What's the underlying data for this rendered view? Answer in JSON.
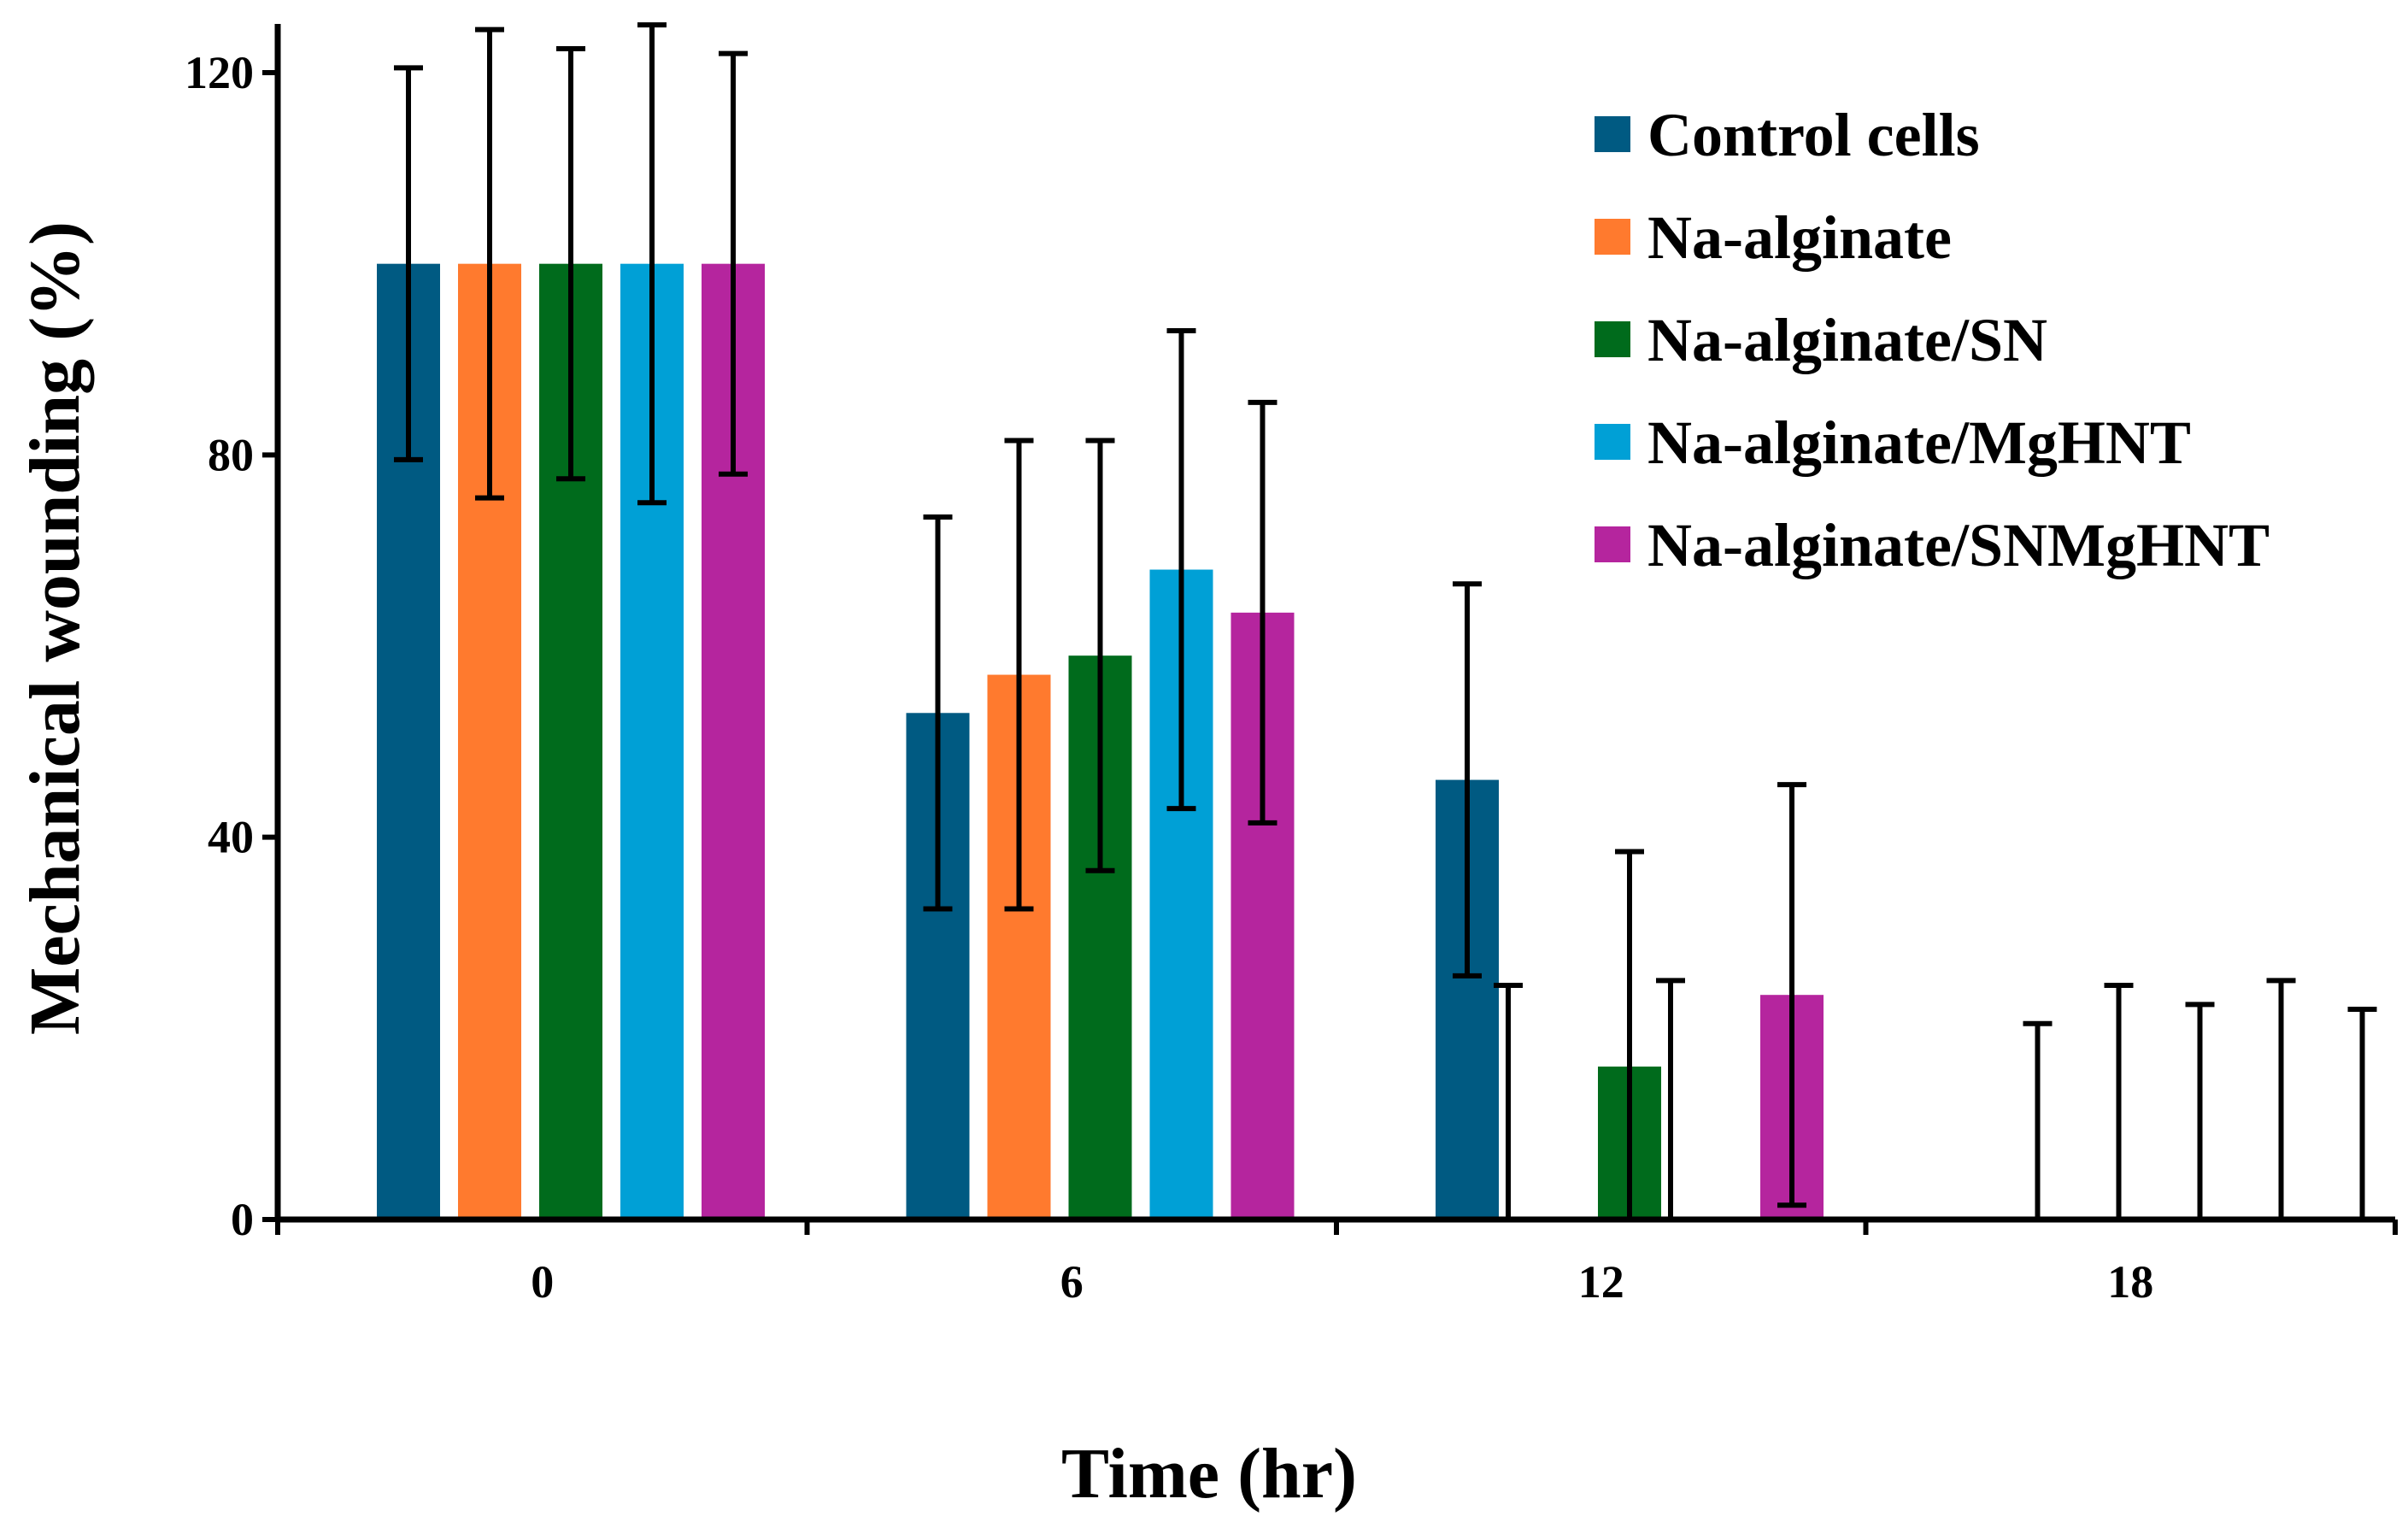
{
  "chart_data": {
    "type": "bar",
    "title": "",
    "xlabel": "Time (hr)",
    "ylabel": "Mechanical wounding (%)",
    "categories": [
      "0",
      "6",
      "12",
      "18"
    ],
    "ylim": [
      0,
      120
    ],
    "yticks": [
      "0",
      "40",
      "80",
      "120"
    ],
    "legend_position": "top-right",
    "grid": false,
    "series": [
      {
        "name": "Control cells",
        "color": "#005a82",
        "values": [
          100,
          53,
          46,
          0
        ],
        "errors": [
          20.5,
          20.5,
          20.5,
          0
        ]
      },
      {
        "name": "Na-alginate",
        "color": "#ff7a2e",
        "values": [
          100,
          57,
          0,
          0
        ],
        "errors": [
          24.5,
          24.5,
          24.5,
          20.5
        ]
      },
      {
        "name": "Na-alginate/SN",
        "color": "#006b1c",
        "values": [
          100,
          59,
          16,
          0
        ],
        "errors": [
          22.5,
          22.5,
          22.5,
          24.5
        ]
      },
      {
        "name": "Na-alginate/MgHNT",
        "color": "#00a0d6",
        "values": [
          100,
          68,
          0,
          0
        ],
        "errors": [
          25,
          25,
          25,
          22.5
        ]
      },
      {
        "name": "Na-alginate/SNMgHNT",
        "color": "#b5259e",
        "values": [
          100,
          63.5,
          23.5,
          0
        ],
        "errors": [
          22,
          22,
          22,
          25
        ]
      }
    ],
    "extra_error_bar_at_18": {
      "series": "after",
      "value": 0,
      "error": 22
    }
  }
}
